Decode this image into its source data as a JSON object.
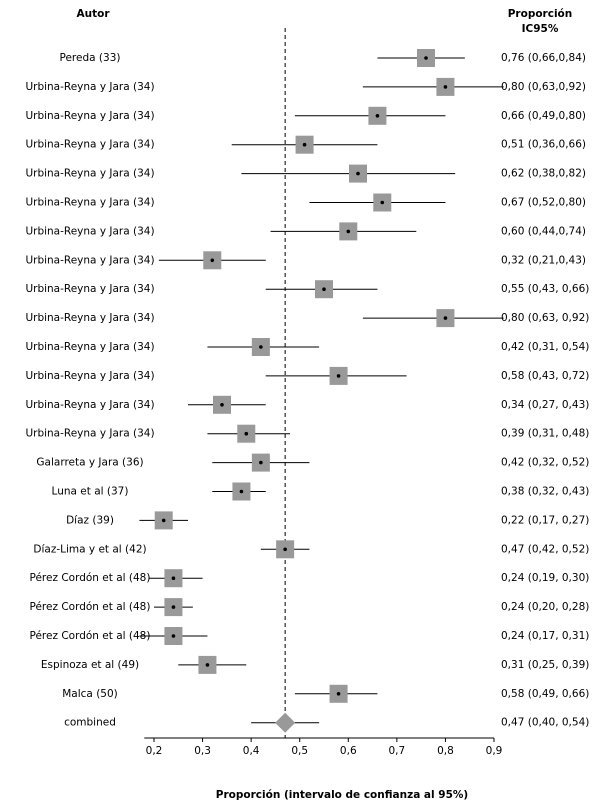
{
  "chart_data": {
    "type": "forest",
    "left_header": "Autor",
    "right_header": [
      "Proporción",
      "IC95%"
    ],
    "x_label": "Proporción (intervalo de confianza al 95%)",
    "categories": [
      "Pereda (33)",
      "Urbina-Reyna y Jara (34)",
      "Urbina-Reyna y Jara (34)",
      "Urbina-Reyna y Jara (34)",
      "Urbina-Reyna y Jara (34)",
      "Urbina-Reyna y Jara (34)",
      "Urbina-Reyna y Jara (34)",
      "Urbina-Reyna y Jara (34)",
      "Urbina-Reyna y Jara (34)",
      "Urbina-Reyna y Jara (34)",
      "Urbina-Reyna y Jara (34)",
      "Urbina-Reyna y Jara (34)",
      "Urbina-Reyna y Jara (34)",
      "Urbina-Reyna y Jara (34)",
      "Galarreta y Jara (36)",
      "Luna et al (37)",
      "Díaz (39)",
      "Díaz-Lima y et al (42)",
      "Pérez Cordón et al (48)",
      "Pérez Cordón et al (48)",
      "Pérez Cordón et al (48)",
      "Espinoza et al (49)",
      "Malca (50)",
      "combined"
    ],
    "values": [
      0.76,
      0.8,
      0.66,
      0.51,
      0.62,
      0.67,
      0.6,
      0.32,
      0.55,
      0.8,
      0.42,
      0.58,
      0.34,
      0.39,
      0.42,
      0.38,
      0.22,
      0.47,
      0.24,
      0.24,
      0.24,
      0.31,
      0.58,
      0.47
    ],
    "lower": [
      0.66,
      0.63,
      0.49,
      0.36,
      0.38,
      0.52,
      0.44,
      0.21,
      0.43,
      0.63,
      0.31,
      0.43,
      0.27,
      0.31,
      0.32,
      0.32,
      0.17,
      0.42,
      0.19,
      0.2,
      0.17,
      0.25,
      0.49,
      0.4
    ],
    "upper": [
      0.84,
      0.92,
      0.8,
      0.66,
      0.82,
      0.8,
      0.74,
      0.43,
      0.66,
      0.92,
      0.54,
      0.72,
      0.43,
      0.48,
      0.52,
      0.43,
      0.27,
      0.52,
      0.3,
      0.28,
      0.31,
      0.39,
      0.66,
      0.54
    ],
    "value_labels": [
      "0,76 (0,66,0,84)",
      "0,80 (0,63,0,92)",
      "0,66 (0,49,0,80)",
      "0,51 (0,36,0,66)",
      "0,62 (0,38,0,82)",
      "0,67 (0,52,0,80)",
      "0,60 (0,44,0,74)",
      "0,32 (0,21,0,43)",
      "0,55 (0,43, 0,66)",
      "0,80 (0,63, 0,92)",
      "0,42 (0,31, 0,54)",
      "0,58 (0,43, 0,72)",
      "0,34 (0,27, 0,43)",
      "0,39 (0,31, 0,48)",
      "0,42 (0,32, 0,52)",
      "0,38 (0,32, 0,43)",
      "0,22 (0,17, 0,27)",
      "0,47 (0,42, 0,52)",
      "0,24 (0,19, 0,30)",
      "0,24 (0,20, 0,28)",
      "0,24 (0,17, 0,31)",
      "0,31 (0,25, 0,39)",
      "0,58 (0,49, 0,66)",
      "0,47 (0,40, 0,54)"
    ],
    "color": "#999999",
    "xlim": [
      0.18,
      0.9
    ],
    "xticks": [
      {
        "value": 0.2,
        "label": "0,2"
      },
      {
        "value": 0.3,
        "label": "0,3"
      },
      {
        "value": 0.4,
        "label": "0,4"
      },
      {
        "value": 0.5,
        "label": "0,5"
      },
      {
        "value": 0.6,
        "label": "0,6"
      },
      {
        "value": 0.7,
        "label": "0,7"
      },
      {
        "value": 0.8,
        "label": "0,8"
      },
      {
        "value": 0.9,
        "label": "0,9"
      }
    ]
  }
}
